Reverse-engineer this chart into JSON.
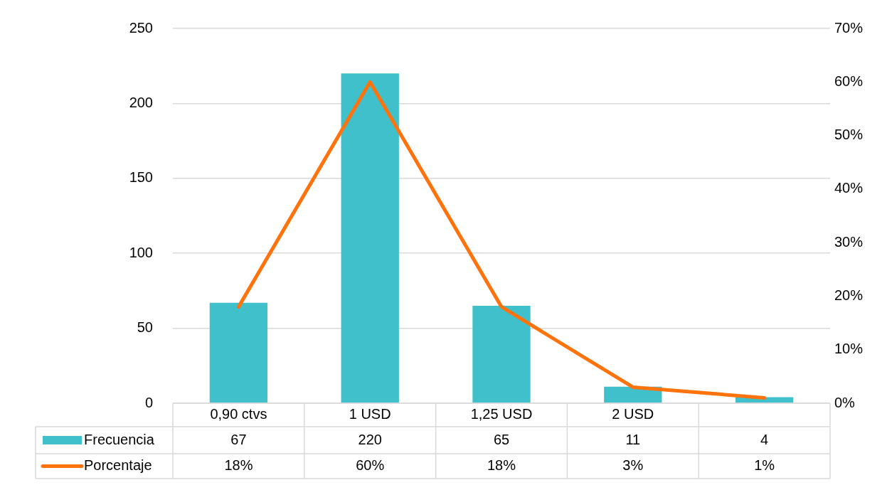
{
  "chart_data": {
    "type": "bar",
    "categories": [
      "0,90 ctvs",
      "1 USD",
      "1,25 USD",
      "2 USD",
      null
    ],
    "series": [
      {
        "name": "Frecuencia",
        "color": "#40c0cb",
        "values": [
          67,
          220,
          65,
          11,
          4
        ],
        "value_labels": [
          "67",
          "220",
          "65",
          "11",
          "4"
        ]
      },
      {
        "name": "Porcentaje",
        "type": "line",
        "axis": "y2",
        "color": "#ff720c",
        "values": [
          18,
          60,
          18,
          3,
          1
        ],
        "value_labels": [
          "18%",
          "60%",
          "18%",
          "3%",
          "1%"
        ]
      }
    ],
    "ylim": [
      0,
      250
    ],
    "yticks": [
      0,
      50,
      100,
      150,
      200,
      250
    ],
    "y2lim": [
      0,
      70
    ],
    "y2ticks": [
      {
        "value": 0,
        "label": "0%"
      },
      {
        "value": 10,
        "label": "10%"
      },
      {
        "value": 20,
        "label": "20%"
      },
      {
        "value": 30,
        "label": "30%"
      },
      {
        "value": 40,
        "label": "40%"
      },
      {
        "value": 50,
        "label": "50%"
      },
      {
        "value": 60,
        "label": "60%"
      },
      {
        "value": 70,
        "label": "70%"
      }
    ],
    "grid": "y",
    "legend": "bottom",
    "marker": "none",
    "line_style": "solid"
  }
}
